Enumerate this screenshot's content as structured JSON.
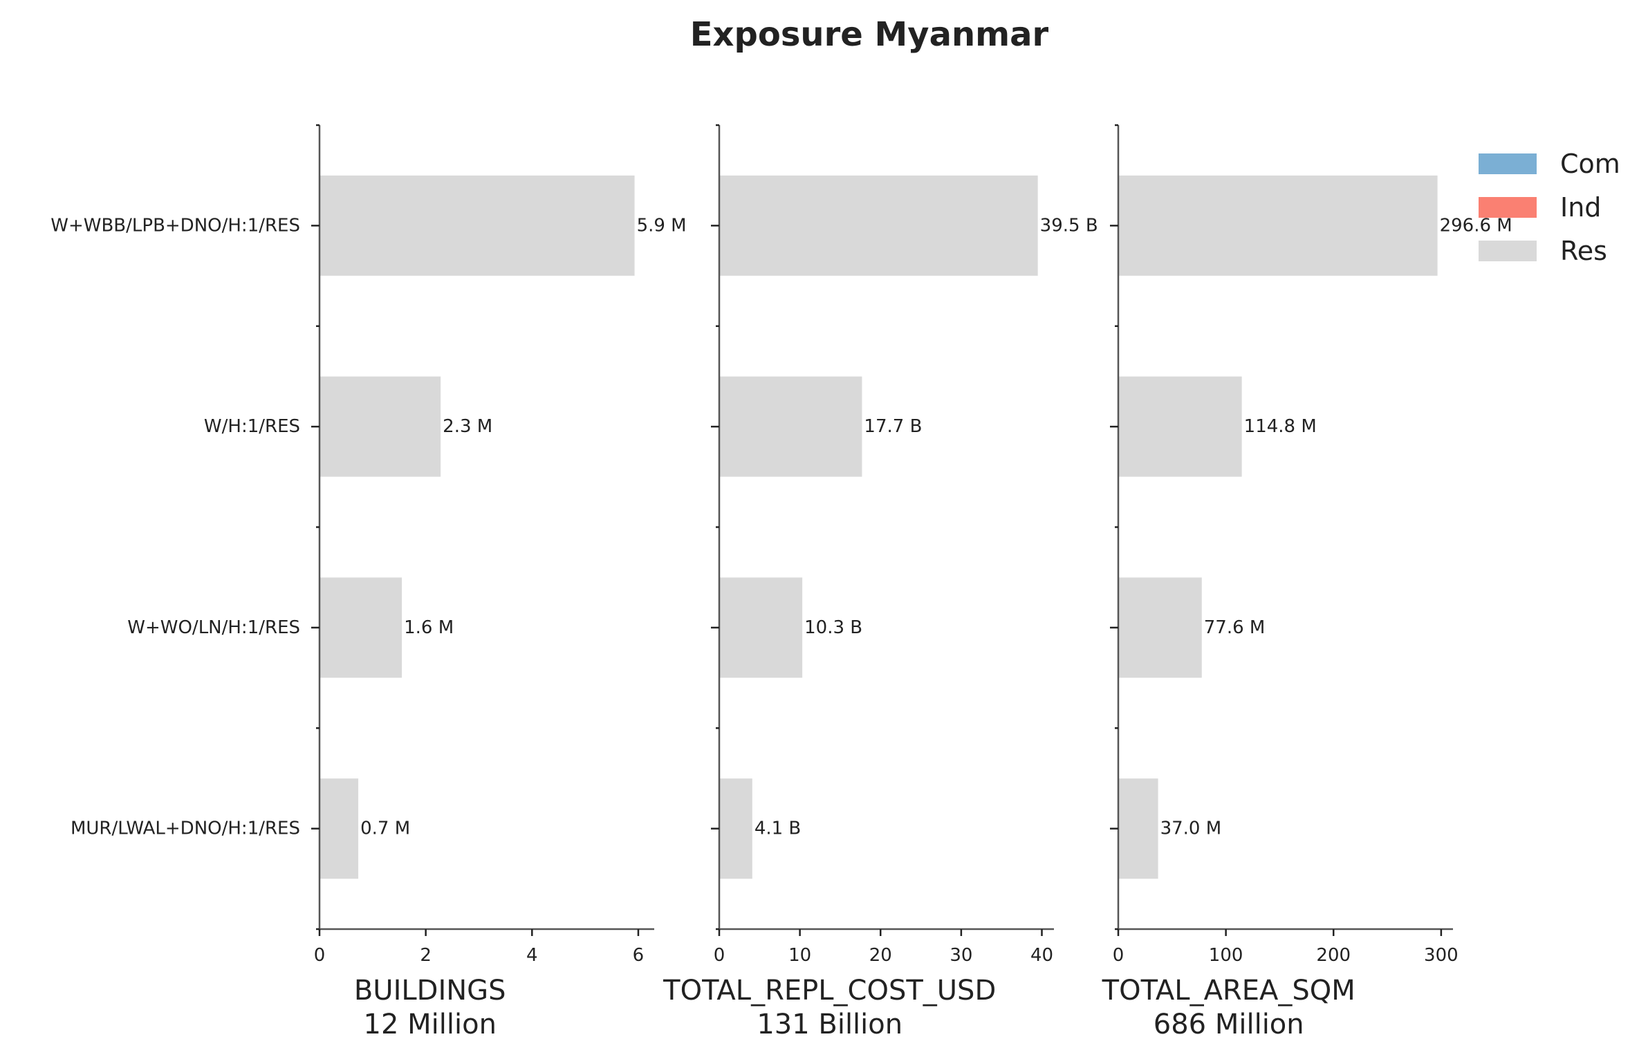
{
  "title": "Exposure Myanmar",
  "colors": {
    "Com": "#7bafd4",
    "Ind": "#fa8072",
    "Res": "#d9d9d9"
  },
  "legend": {
    "position": "top-right",
    "entries": [
      "Com",
      "Ind",
      "Res"
    ]
  },
  "chart_data": [
    {
      "type": "bar",
      "orientation": "horizontal",
      "categories": [
        "W+WBB/LPB+DNO/H:1/RES",
        "W/H:1/RES",
        "W+WO/LN/H:1/RES",
        "MUR/LWAL+DNO/H:1/RES"
      ],
      "series": [
        {
          "name": "Res",
          "values": [
            5.93,
            2.28,
            1.55,
            0.73
          ]
        }
      ],
      "value_labels": [
        "5.9 M",
        "2.3 M",
        "1.6 M",
        "0.7 M"
      ],
      "xlabel": "BUILDINGS",
      "xlabel_sub": "12 Million",
      "xlim": [
        0,
        6.3
      ],
      "xticks": [
        0,
        2,
        4,
        6
      ]
    },
    {
      "type": "bar",
      "orientation": "horizontal",
      "categories": [
        "W+WBB/LPB+DNO/H:1/RES",
        "W/H:1/RES",
        "W+WO/LN/H:1/RES",
        "MUR/LWAL+DNO/H:1/RES"
      ],
      "series": [
        {
          "name": "Res",
          "values": [
            39.5,
            17.7,
            10.3,
            4.1
          ]
        }
      ],
      "value_labels": [
        "39.5 B",
        "17.7 B",
        "10.3 B",
        "4.1 B"
      ],
      "xlabel": "TOTAL_REPL_COST_USD",
      "xlabel_sub": "131 Billion",
      "xlim": [
        0,
        41.5
      ],
      "xticks": [
        0,
        10,
        20,
        30,
        40
      ]
    },
    {
      "type": "bar",
      "orientation": "horizontal",
      "categories": [
        "W+WBB/LPB+DNO/H:1/RES",
        "W/H:1/RES",
        "W+WO/LN/H:1/RES",
        "MUR/LWAL+DNO/H:1/RES"
      ],
      "series": [
        {
          "name": "Res",
          "values": [
            296.6,
            114.8,
            77.6,
            37.0
          ]
        }
      ],
      "value_labels": [
        "296.6 M",
        "114.8 M",
        "77.6 M",
        "37.0 M"
      ],
      "xlabel": "TOTAL_AREA_SQM",
      "xlabel_sub": "686 Million",
      "xlim": [
        0,
        311
      ],
      "xticks": [
        0,
        100,
        200,
        300
      ]
    }
  ]
}
